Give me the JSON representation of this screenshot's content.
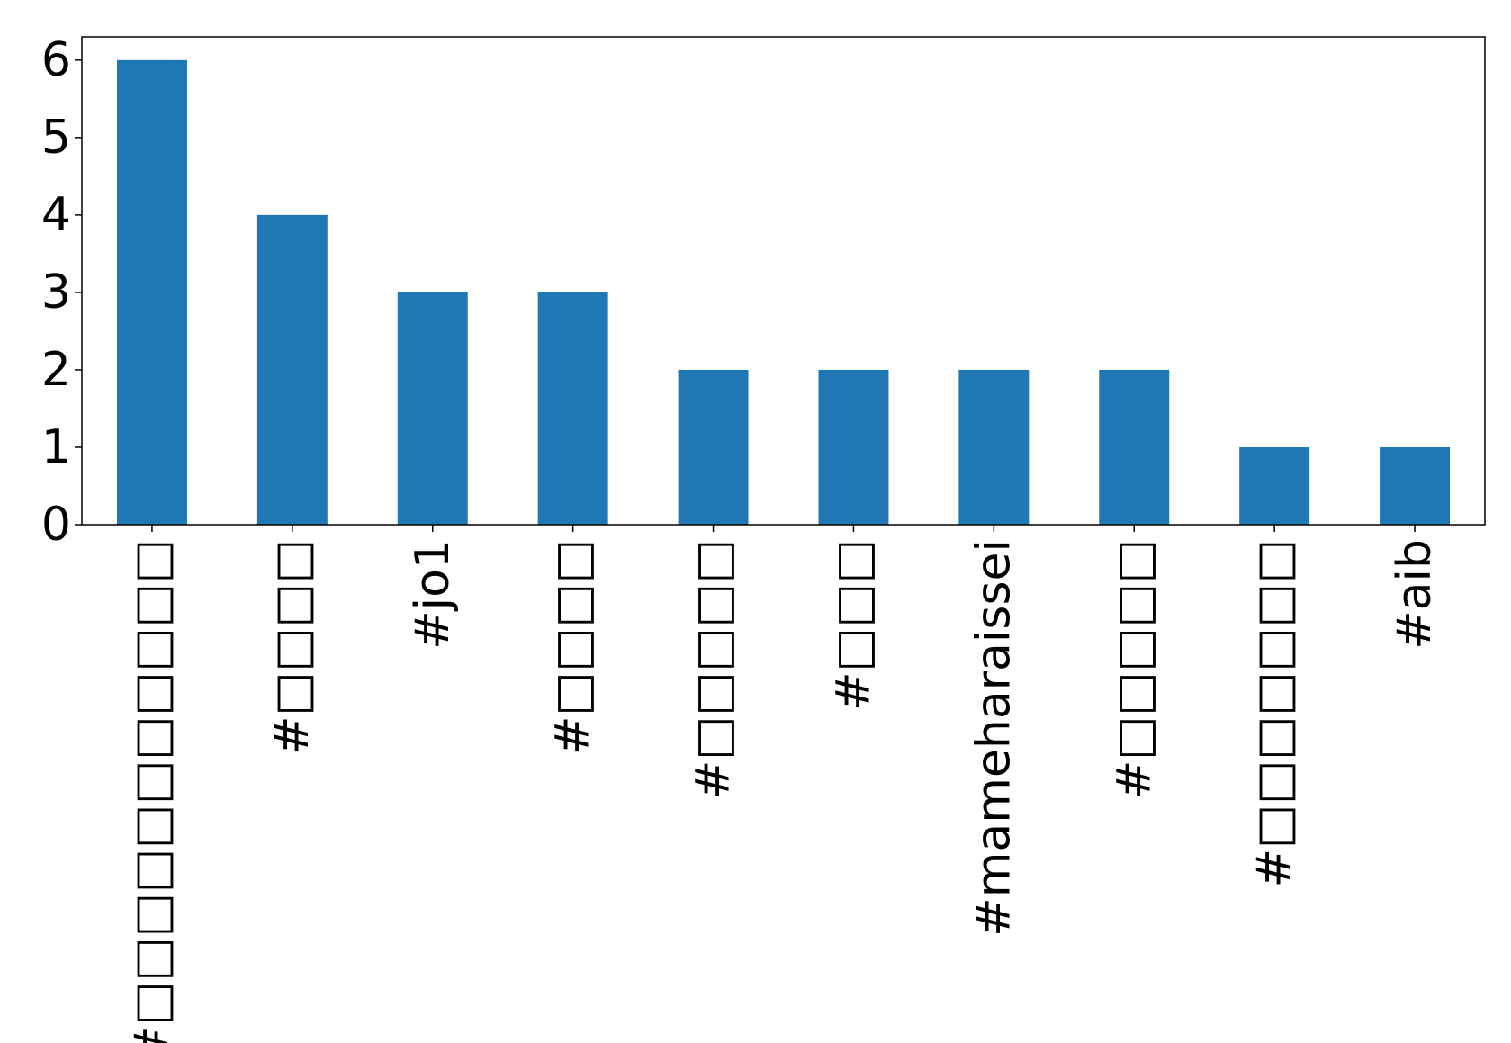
{
  "chart_data": {
    "type": "bar",
    "categories": [
      "#□□□□□□□□□□□",
      "#□□□□",
      "#jo1",
      "#□□□□",
      "#□□□□□",
      "#□□□",
      "#mameharaissei",
      "#□□□□□",
      "#□□□□□□□",
      "#aib"
    ],
    "values": [
      6,
      4,
      3,
      3,
      2,
      2,
      2,
      2,
      1,
      1
    ],
    "ylim": [
      0,
      6.3
    ],
    "yticks": [
      0,
      1,
      2,
      3,
      4,
      5,
      6
    ],
    "title": "",
    "xlabel": "",
    "ylabel": "",
    "grid": false,
    "legend": "none",
    "bar_color": "#1f77b4"
  }
}
